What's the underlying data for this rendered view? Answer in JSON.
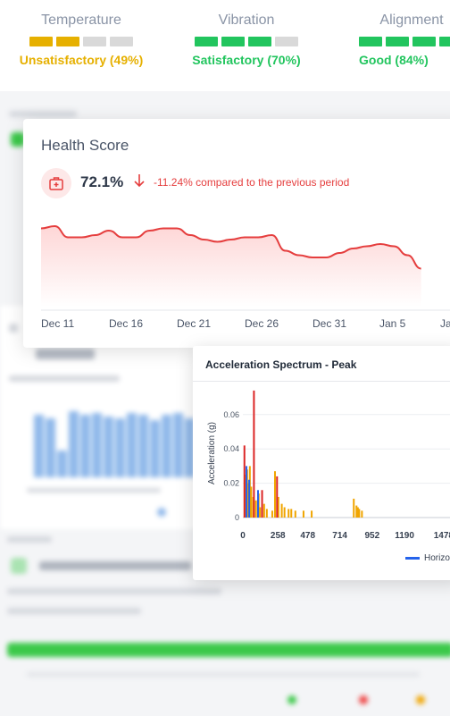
{
  "metrics": [
    {
      "name": "Temperature",
      "status": "Unsatisfactory (49%)",
      "level": 0.49,
      "filled": 2,
      "color": "#e6b000"
    },
    {
      "name": "Vibration",
      "status": "Satisfactory (70%)",
      "level": 0.7,
      "filled": 3,
      "color": "#22c55e"
    },
    {
      "name": "Alignment",
      "status": "Good (84%)",
      "level": 0.84,
      "filled": 4,
      "color": "#22c55e"
    }
  ],
  "health": {
    "title": "Health Score",
    "value": "72.1%",
    "compare": "-11.24% compared to the previous period",
    "icon": "first-aid-kit-icon",
    "trend_icon": "arrow-down-icon",
    "accent": "#e53e3e",
    "x_ticks": [
      "Dec 11",
      "Dec 16",
      "Dec 21",
      "Dec 26",
      "Dec 31",
      "Jan 5",
      "Ja"
    ]
  },
  "spectrum": {
    "title": "Acceleration Spectrum - Peak",
    "ylabel": "Acceleration (g)",
    "legend": "Horizo",
    "legend_color": "#2563eb"
  },
  "chart_data": [
    {
      "type": "area",
      "title": "Health Score",
      "x": [
        "Dec 11",
        "Dec 12",
        "Dec 13",
        "Dec 14",
        "Dec 15",
        "Dec 16",
        "Dec 17",
        "Dec 18",
        "Dec 19",
        "Dec 20",
        "Dec 21",
        "Dec 22",
        "Dec 23",
        "Dec 24",
        "Dec 25",
        "Dec 26",
        "Dec 27",
        "Dec 28",
        "Dec 29",
        "Dec 30",
        "Dec 31",
        "Jan 1",
        "Jan 2",
        "Jan 3",
        "Jan 4",
        "Jan 5",
        "Jan 6",
        "Jan 7",
        "Jan 8"
      ],
      "series": [
        {
          "values": [
            95,
            96,
            91,
            91,
            92,
            94,
            91,
            91,
            94,
            95,
            95,
            92,
            90,
            89,
            90,
            91,
            91,
            92,
            85,
            83,
            82,
            82,
            84,
            86,
            87,
            88,
            87,
            83,
            77
          ]
        }
      ],
      "x_ticks": [
        "Dec 11",
        "Dec 16",
        "Dec 21",
        "Dec 26",
        "Dec 31",
        "Jan 5",
        "Ja"
      ],
      "grid": false
    },
    {
      "type": "bar",
      "title": "Acceleration Spectrum - Peak",
      "xlabel": "",
      "ylabel": "Acceleration (g)",
      "x_ticks": [
        0,
        258,
        478,
        714,
        952,
        1190,
        1478
      ],
      "y_ticks": [
        0,
        0.02,
        0.04,
        0.06
      ],
      "ylim": [
        0,
        0.075
      ],
      "xlim": [
        0,
        1700
      ],
      "grid": true,
      "series": [
        {
          "name": "Horizo",
          "color": "#2563eb",
          "x": [
            20,
            40,
            105
          ],
          "y": [
            0.03,
            0.022,
            0.016
          ]
        },
        {
          "color": "#dc2626",
          "x": [
            5,
            75,
            135,
            245
          ],
          "y": [
            0.042,
            0.074,
            0.016,
            0.024
          ]
        },
        {
          "color": "#f0a500",
          "x": [
            12,
            25,
            30,
            45,
            55,
            70,
            90,
            110,
            120,
            150,
            170,
            210,
            230,
            255,
            280,
            300,
            330,
            350,
            380,
            440,
            500,
            810,
            830,
            840,
            850,
            870
          ],
          "y": [
            0.025,
            0.028,
            0.02,
            0.03,
            0.018,
            0.012,
            0.01,
            0.014,
            0.006,
            0.008,
            0.005,
            0.004,
            0.027,
            0.012,
            0.008,
            0.006,
            0.005,
            0.005,
            0.004,
            0.004,
            0.004,
            0.011,
            0.007,
            0.006,
            0.005,
            0.004
          ]
        }
      ]
    }
  ]
}
